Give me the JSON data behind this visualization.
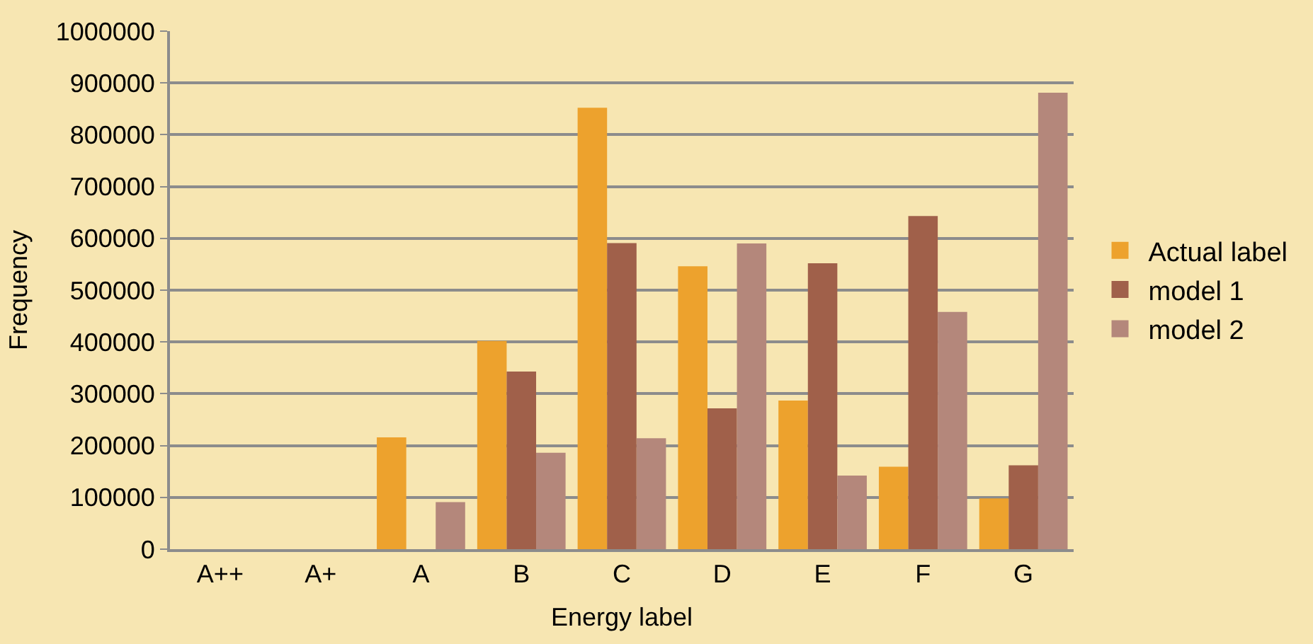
{
  "chart_data": {
    "type": "bar",
    "xlabel": "Energy label",
    "ylabel": "Frequency",
    "categories": [
      "A++",
      "A+",
      "A",
      "B",
      "C",
      "D",
      "E",
      "F",
      "G"
    ],
    "series": [
      {
        "name": "Actual label",
        "color": "#eda22d",
        "values": [
          0,
          0,
          216000,
          402000,
          852000,
          546000,
          287000,
          159000,
          98000
        ]
      },
      {
        "name": "model 1",
        "color": "#a0604a",
        "values": [
          0,
          0,
          0,
          343000,
          591000,
          272000,
          552000,
          643000,
          162000
        ]
      },
      {
        "name": "model 2",
        "color": "#b4877b",
        "values": [
          0,
          0,
          91000,
          186000,
          214000,
          590000,
          142000,
          458000,
          881000
        ]
      }
    ],
    "ylim": [
      0,
      1000000
    ],
    "yticks": [
      0,
      100000,
      200000,
      300000,
      400000,
      500000,
      600000,
      700000,
      800000,
      900000,
      1000000
    ],
    "grid": "y",
    "legend": "right"
  }
}
